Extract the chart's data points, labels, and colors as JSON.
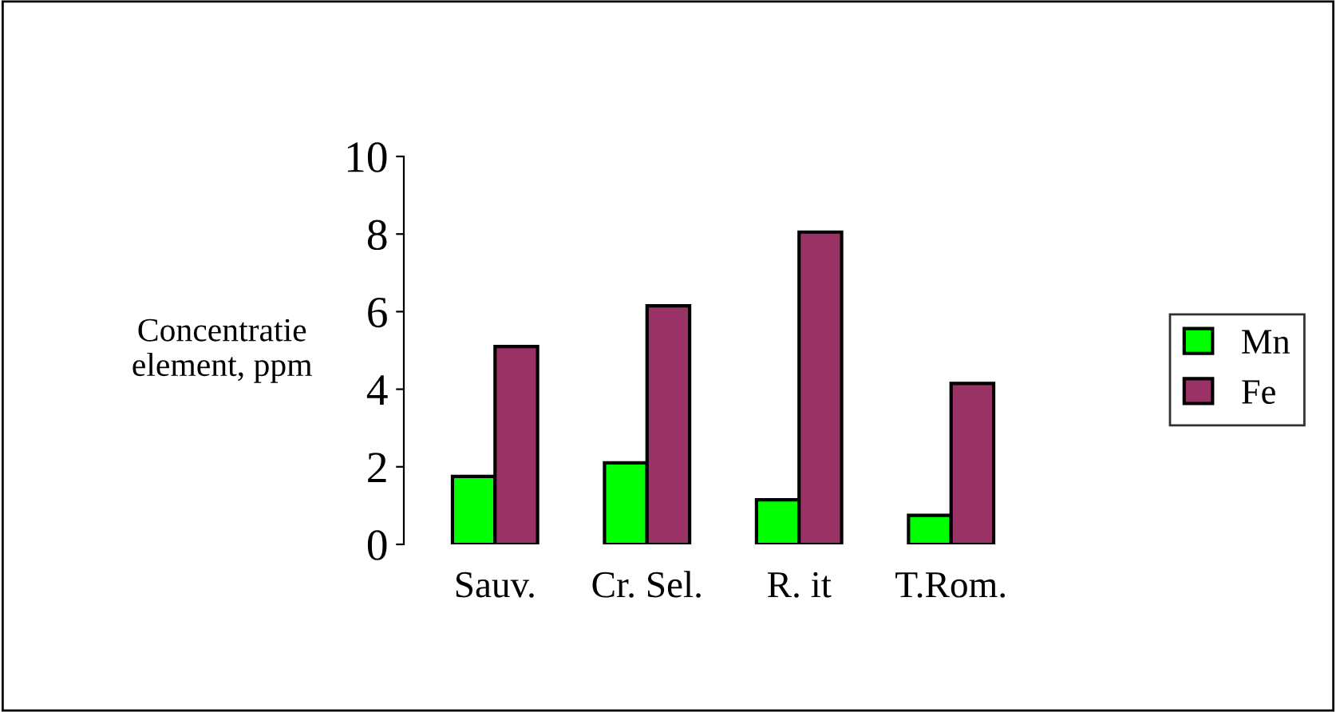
{
  "chart_data": {
    "type": "bar",
    "ylabel": "Concentratie\nelement, ppm",
    "categories": [
      "Sauv.",
      "Cr. Sel.",
      "R. it",
      "T.Rom."
    ],
    "series": [
      {
        "name": "Mn",
        "color": "#00ff00",
        "values": [
          1.75,
          2.1,
          1.15,
          0.75
        ]
      },
      {
        "name": "Fe",
        "color": "#993366",
        "values": [
          5.1,
          6.15,
          8.05,
          4.15
        ]
      }
    ],
    "ylim": [
      0,
      10
    ],
    "yticks": [
      0,
      2,
      4,
      6,
      8,
      10
    ],
    "grid": false,
    "legend": "right"
  }
}
